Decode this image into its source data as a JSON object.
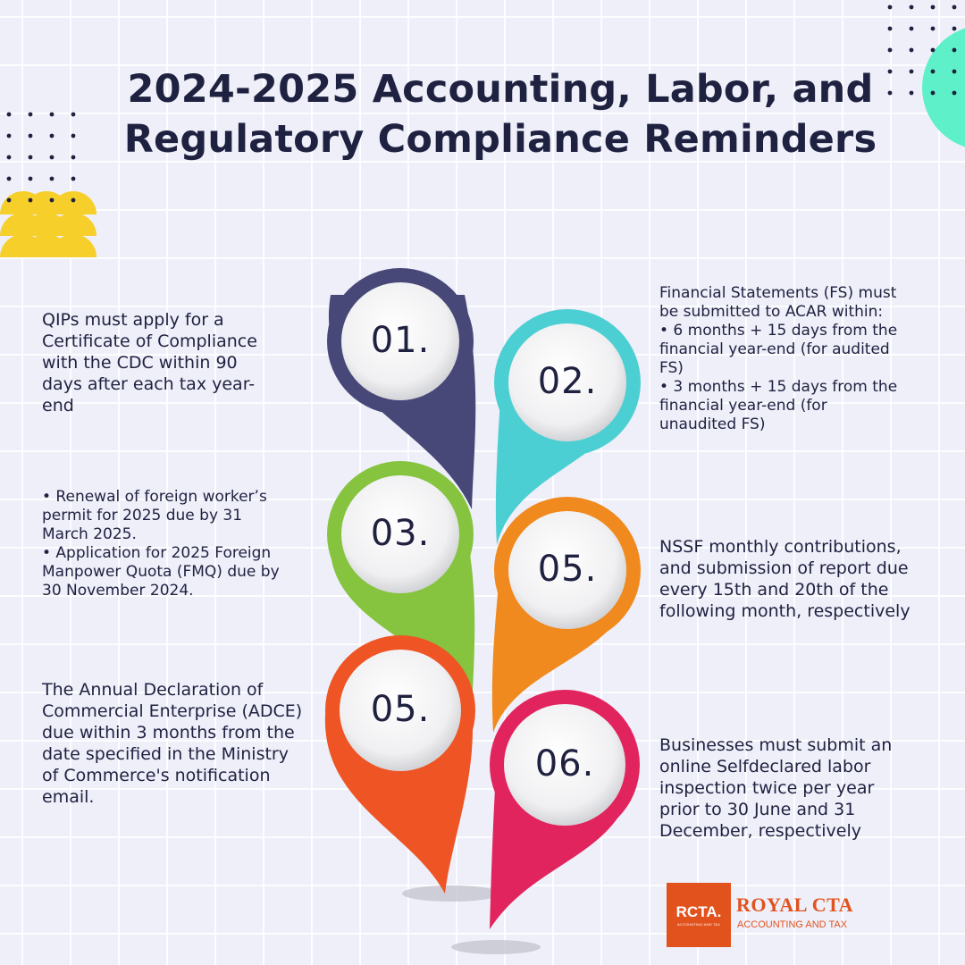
{
  "title_lines": [
    "2024-2025 Accounting, Labor, and",
    "Regulatory Compliance Reminders"
  ],
  "pins": [
    {
      "label": "01.",
      "color": "#474778"
    },
    {
      "label": "02.",
      "color": "#4ccfd2"
    },
    {
      "label": "03.",
      "color": "#86c440"
    },
    {
      "label": "05.",
      "color": "#f08a1e"
    },
    {
      "label": "05.",
      "color": "#ef5424"
    },
    {
      "label": "06.",
      "color": "#e2245e"
    }
  ],
  "notes": {
    "note_01": [
      "QIPs must apply for a",
      "Certificate of Compliance",
      "with the CDC within 90",
      "days after each tax year-",
      "end"
    ],
    "note_02": [
      "Financial Statements (FS) must",
      "be submitted to ACAR within:",
      "• 6 months + 15 days from the",
      "financial year-end (for audited",
      "FS)",
      "• 3 months + 15 days from the",
      "financial year-end (for",
      "unaudited FS)"
    ],
    "note_03": [
      "• Renewal of foreign worker’s",
      "permit for 2025 due by 31",
      "March 2025.",
      "• Application for 2025 Foreign",
      "Manpower Quota (FMQ) due by",
      "30 November 2024."
    ],
    "note_05_right": [
      "NSSF monthly contributions,",
      "and submission of report due",
      "every 15th and 20th of the",
      "following month, respectively"
    ],
    "note_05_left": [
      "The Annual Declaration of",
      "Commercial Enterprise (ADCE)",
      "due within 3 months from the",
      "date specified in the Ministry",
      "of Commerce's notification",
      "email."
    ],
    "note_06": [
      "Businesses must submit an",
      "online Selfdeclared labor",
      "inspection twice per year",
      "prior to 30 June and 31",
      "December, respectively"
    ]
  },
  "logo": {
    "mark": "RCTA.",
    "mark_sub": "ACCOUNTING AND TAX",
    "name": "ROYAL CTA",
    "tagline": "ACCOUNTING AND TAX"
  },
  "colors": {
    "title": "#1f2140",
    "accent_yellow": "#f6cf2a",
    "accent_teal": "#5ef0c8",
    "brand": "#e2521d"
  }
}
